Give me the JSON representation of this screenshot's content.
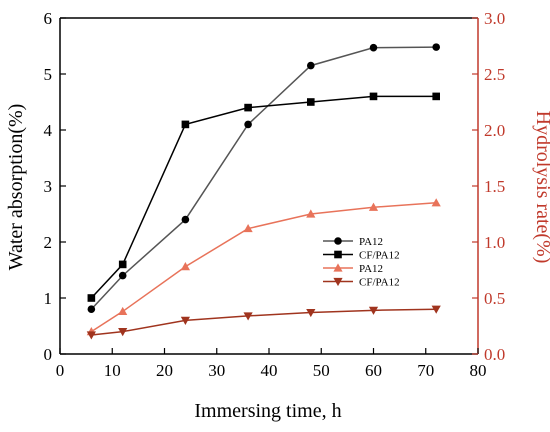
{
  "chart_data": {
    "type": "line",
    "xlabel": "Immersing time, h",
    "ylabel_left": "Water absorption(%)",
    "ylabel_right": "Hydrolysis rate(%)",
    "xlim": [
      0,
      80
    ],
    "ylim_left": [
      0,
      6
    ],
    "ylim_right": [
      0,
      3.0
    ],
    "x_ticks": [
      0,
      10,
      20,
      30,
      40,
      50,
      60,
      70,
      80
    ],
    "y_ticks_left": [
      0,
      1,
      2,
      3,
      4,
      5,
      6
    ],
    "y_ticks_right": [
      "0.0",
      "0.5",
      "1.0",
      "1.5",
      "2.0",
      "2.5",
      "3.0"
    ],
    "legend_position": "center-right",
    "grid": false,
    "series": [
      {
        "name": "PA12",
        "axis": "left",
        "marker": "circle",
        "color": "#000000",
        "line_color": "#555555",
        "points": [
          [
            6,
            0.8
          ],
          [
            12,
            1.4
          ],
          [
            24,
            2.4
          ],
          [
            36,
            4.1
          ],
          [
            48,
            5.15
          ],
          [
            60,
            5.47
          ],
          [
            72,
            5.48
          ]
        ]
      },
      {
        "name": "CF/PA12",
        "axis": "left",
        "marker": "square",
        "color": "#000000",
        "line_color": "#000000",
        "points": [
          [
            6,
            1.0
          ],
          [
            12,
            1.6
          ],
          [
            24,
            4.1
          ],
          [
            36,
            4.4
          ],
          [
            48,
            4.5
          ],
          [
            60,
            4.6
          ],
          [
            72,
            4.6
          ]
        ]
      },
      {
        "name": "PA12",
        "axis": "right",
        "marker": "triangle-up",
        "color": "#e8735a",
        "line_color": "#e8735a",
        "points": [
          [
            6,
            0.2
          ],
          [
            12,
            0.38
          ],
          [
            24,
            0.78
          ],
          [
            36,
            1.12
          ],
          [
            48,
            1.25
          ],
          [
            60,
            1.31
          ],
          [
            72,
            1.35
          ]
        ]
      },
      {
        "name": "CF/PA12",
        "axis": "right",
        "marker": "triangle-down",
        "color": "#a0341e",
        "line_color": "#a0341e",
        "points": [
          [
            6,
            0.17
          ],
          [
            12,
            0.2
          ],
          [
            24,
            0.3
          ],
          [
            36,
            0.34
          ],
          [
            48,
            0.37
          ],
          [
            60,
            0.39
          ],
          [
            72,
            0.4
          ]
        ]
      }
    ]
  }
}
